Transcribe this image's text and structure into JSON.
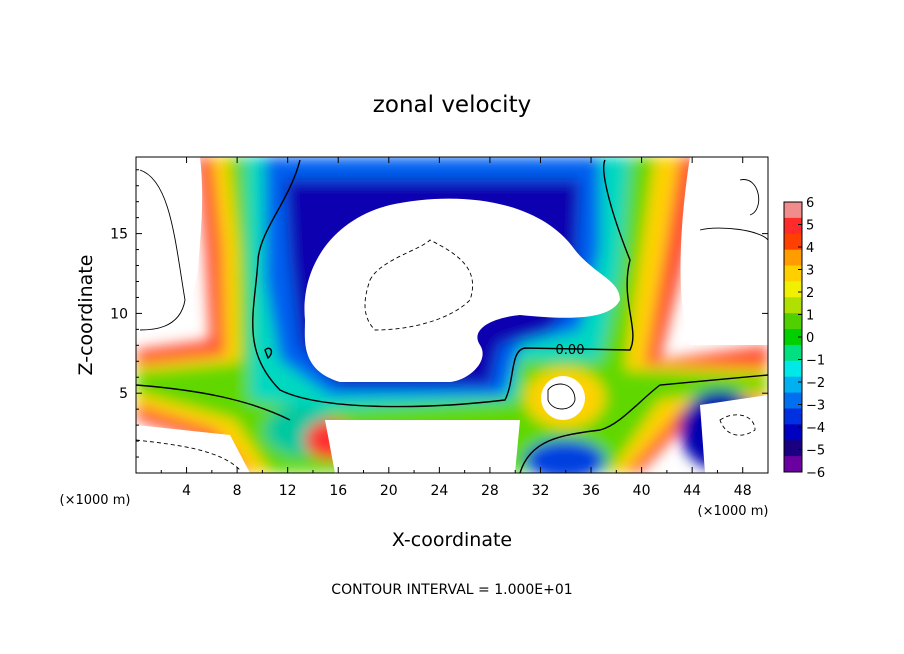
{
  "chart_data": {
    "type": "heatmap",
    "title": "zonal velocity",
    "xlabel": "X-coordinate",
    "ylabel": "Z-coordinate",
    "x_unit_label": "(×1000 m)",
    "x_unit_label_right": "(×1000 m)",
    "xlim": [
      0,
      50
    ],
    "ylim": [
      0,
      19.8
    ],
    "x_ticks": [
      4,
      8,
      12,
      16,
      20,
      24,
      28,
      32,
      36,
      40,
      44,
      48
    ],
    "y_ticks": [
      5,
      10,
      15
    ],
    "colorbar": {
      "ticks": [
        "6",
        "5",
        "4",
        "3",
        "2",
        "1",
        "0",
        "−1",
        "−2",
        "−3",
        "−4",
        "−5",
        "−6"
      ],
      "min": -6,
      "max": 6,
      "colors": [
        "#f08c8c",
        "#ff2a2a",
        "#ff4000",
        "#ff9c00",
        "#ffd000",
        "#f0f000",
        "#b0e000",
        "#50d000",
        "#00d000",
        "#00e080",
        "#00e8e8",
        "#00b0f0",
        "#0070f0",
        "#0030e0",
        "#0000c0",
        "#1a0080",
        "#6a00a0"
      ]
    },
    "contour_label": "0.00",
    "contour_interval_text": "CONTOUR INTERVAL = 1.000E+01",
    "grid": false,
    "note": "Continuous field estimated visually; white regions are values beyond the color scale."
  }
}
